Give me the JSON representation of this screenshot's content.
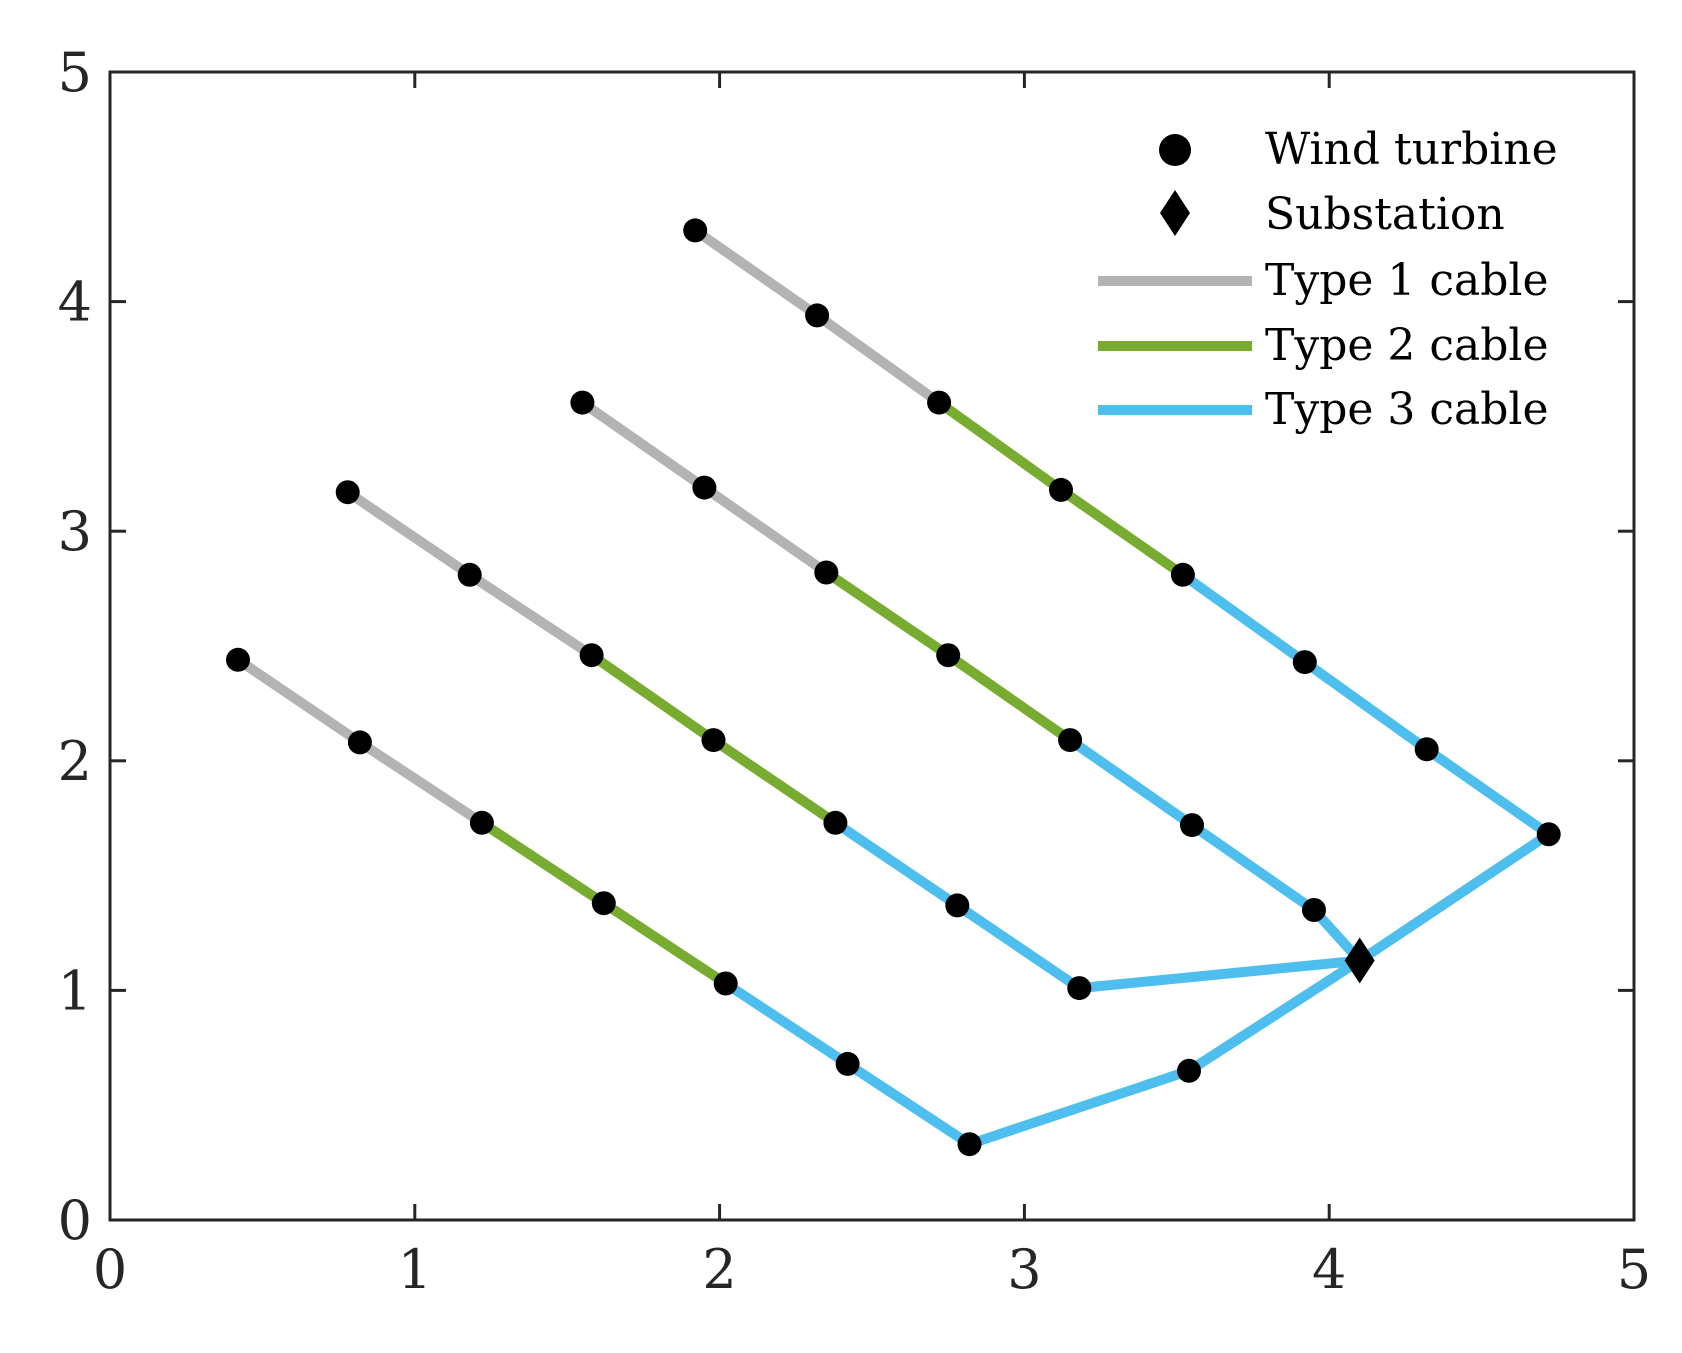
{
  "chart_data": {
    "type": "scatter",
    "title": "",
    "xlabel": "",
    "ylabel": "",
    "xlim": [
      0,
      5
    ],
    "ylim": [
      0,
      5
    ],
    "xticks": [
      "0",
      "1",
      "2",
      "3",
      "4",
      "5"
    ],
    "yticks": [
      "0",
      "1",
      "2",
      "3",
      "4",
      "5"
    ],
    "grid": false,
    "legend_position": "top-right",
    "legend": {
      "wind_turbine": "Wind turbine",
      "substation": "Substation",
      "type1": "Type 1 cable",
      "type2": "Type 2 cable",
      "type3": "Type 3 cable"
    },
    "colors": {
      "type1": "#b3b3b3",
      "type2": "#77ac30",
      "type3": "#4dbeee",
      "marker": "#000000"
    },
    "substation": [
      4.1,
      1.13
    ],
    "turbines": [
      [
        0.42,
        2.44
      ],
      [
        0.82,
        2.08
      ],
      [
        1.22,
        1.73
      ],
      [
        1.62,
        1.38
      ],
      [
        2.02,
        1.03
      ],
      [
        2.42,
        0.68
      ],
      [
        2.82,
        0.33
      ],
      [
        3.54,
        0.65
      ],
      [
        0.78,
        3.17
      ],
      [
        1.18,
        2.81
      ],
      [
        1.58,
        2.46
      ],
      [
        1.98,
        2.09
      ],
      [
        2.38,
        1.73
      ],
      [
        2.78,
        1.37
      ],
      [
        3.18,
        1.01
      ],
      [
        1.55,
        3.56
      ],
      [
        1.95,
        3.19
      ],
      [
        2.35,
        2.82
      ],
      [
        2.75,
        2.46
      ],
      [
        3.15,
        2.09
      ],
      [
        3.55,
        1.72
      ],
      [
        3.95,
        1.35
      ],
      [
        1.92,
        4.31
      ],
      [
        2.32,
        3.94
      ],
      [
        2.72,
        3.56
      ],
      [
        3.12,
        3.18
      ],
      [
        3.52,
        2.81
      ],
      [
        3.92,
        2.43
      ],
      [
        4.32,
        2.05
      ],
      [
        4.72,
        1.68
      ]
    ],
    "cables": [
      {
        "type": "type1",
        "points": [
          [
            0.42,
            2.44
          ],
          [
            0.82,
            2.08
          ],
          [
            1.22,
            1.73
          ]
        ]
      },
      {
        "type": "type2",
        "points": [
          [
            1.22,
            1.73
          ],
          [
            1.62,
            1.38
          ],
          [
            2.02,
            1.03
          ]
        ]
      },
      {
        "type": "type3",
        "points": [
          [
            2.02,
            1.03
          ],
          [
            2.42,
            0.68
          ],
          [
            2.82,
            0.33
          ],
          [
            3.54,
            0.65
          ],
          [
            4.1,
            1.13
          ]
        ]
      },
      {
        "type": "type1",
        "points": [
          [
            0.78,
            3.17
          ],
          [
            1.18,
            2.81
          ],
          [
            1.58,
            2.46
          ]
        ]
      },
      {
        "type": "type2",
        "points": [
          [
            1.58,
            2.46
          ],
          [
            1.98,
            2.09
          ],
          [
            2.38,
            1.73
          ]
        ]
      },
      {
        "type": "type3",
        "points": [
          [
            2.38,
            1.73
          ],
          [
            2.78,
            1.37
          ],
          [
            3.18,
            1.01
          ],
          [
            4.1,
            1.13
          ]
        ]
      },
      {
        "type": "type1",
        "points": [
          [
            1.55,
            3.56
          ],
          [
            1.95,
            3.19
          ],
          [
            2.35,
            2.82
          ]
        ]
      },
      {
        "type": "type2",
        "points": [
          [
            2.35,
            2.82
          ],
          [
            2.75,
            2.46
          ],
          [
            3.15,
            2.09
          ]
        ]
      },
      {
        "type": "type3",
        "points": [
          [
            3.15,
            2.09
          ],
          [
            3.55,
            1.72
          ],
          [
            3.95,
            1.35
          ],
          [
            4.1,
            1.13
          ]
        ]
      },
      {
        "type": "type1",
        "points": [
          [
            1.92,
            4.31
          ],
          [
            2.32,
            3.94
          ],
          [
            2.72,
            3.56
          ]
        ]
      },
      {
        "type": "type2",
        "points": [
          [
            2.72,
            3.56
          ],
          [
            3.12,
            3.18
          ],
          [
            3.52,
            2.81
          ]
        ]
      },
      {
        "type": "type3",
        "points": [
          [
            3.52,
            2.81
          ],
          [
            3.92,
            2.43
          ],
          [
            4.32,
            2.05
          ],
          [
            4.72,
            1.68
          ],
          [
            4.1,
            1.13
          ]
        ]
      }
    ]
  }
}
